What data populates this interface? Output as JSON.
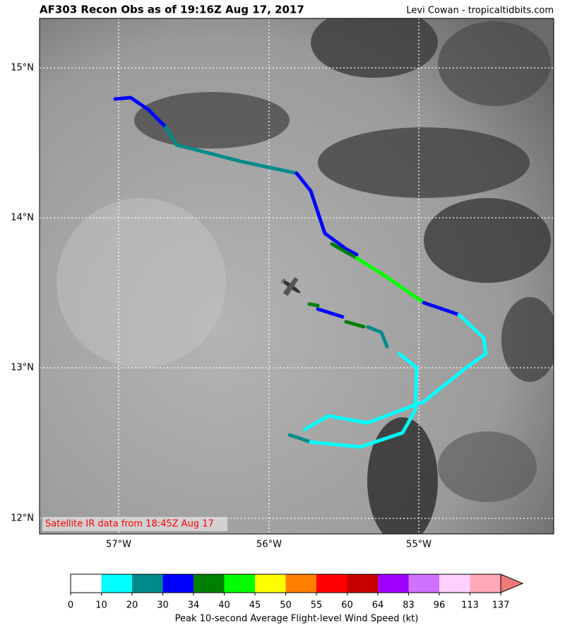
{
  "header": {
    "title": "AF303 Recon Obs as of 19:16Z Aug 17, 2017",
    "credit": "Levi Cowan - tropicaltidbits.com"
  },
  "map": {
    "lat_labels": [
      "15°N",
      "14°N",
      "13°N",
      "12°N"
    ],
    "lon_labels": [
      "57°W",
      "56°W",
      "55°W"
    ],
    "note": "Satellite IR data from 18:45Z Aug 17"
  },
  "colorbar": {
    "label": "Peak 10-second Average Flight-level Wind Speed (kt)",
    "ticks": [
      0,
      10,
      20,
      30,
      34,
      40,
      45,
      50,
      55,
      60,
      64,
      83,
      96,
      113,
      137
    ],
    "colors": [
      "#ffffff",
      "#00ffff",
      "#008b8b",
      "#0000ff",
      "#008000",
      "#00ff00",
      "#ffff00",
      "#ff7f00",
      "#ff0000",
      "#c80000",
      "#a000ff",
      "#d070ff",
      "#ffd0ff",
      "#ffa8b8"
    ],
    "extend_color": "#f07878"
  }
}
